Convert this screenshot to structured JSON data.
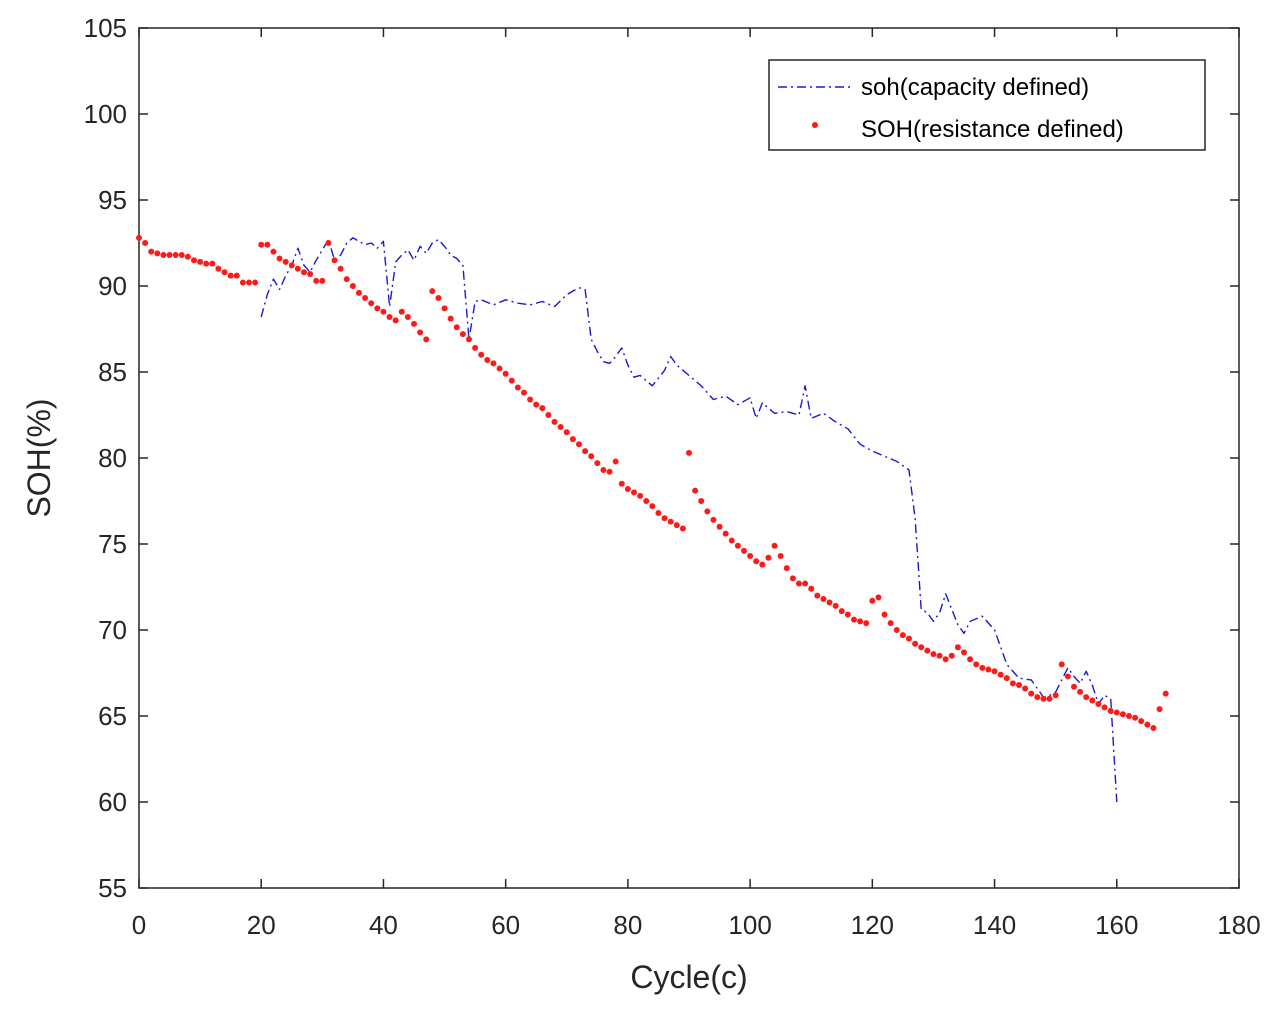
{
  "chart_data": {
    "type": "line",
    "title": "",
    "xlabel": "Cycle(c)",
    "ylabel": "SOH(%)",
    "xlim": [
      0,
      180
    ],
    "ylim": [
      55,
      105
    ],
    "xticks": [
      0,
      20,
      40,
      60,
      80,
      100,
      120,
      140,
      160,
      180
    ],
    "yticks": [
      55,
      60,
      65,
      70,
      75,
      80,
      85,
      90,
      95,
      100,
      105
    ],
    "grid": false,
    "legend_position": "top-right",
    "series": [
      {
        "name": "soh(capacity defined)",
        "style": "dash-dot line",
        "color": "#1a1acc",
        "x": [
          20,
          21,
          22,
          23,
          24,
          25,
          26,
          27,
          28,
          29,
          30,
          31,
          32,
          33,
          34,
          35,
          36,
          37,
          38,
          39,
          40,
          41,
          42,
          43,
          44,
          45,
          46,
          47,
          48,
          49,
          50,
          51,
          52,
          53,
          54,
          55,
          56,
          58,
          60,
          62,
          64,
          66,
          68,
          70,
          72,
          73,
          74,
          75,
          76,
          77,
          78,
          79,
          80,
          81,
          82,
          84,
          86,
          87,
          88,
          90,
          92,
          94,
          96,
          98,
          100,
          101,
          102,
          104,
          106,
          108,
          109,
          110,
          112,
          114,
          116,
          118,
          120,
          122,
          124,
          126,
          127,
          128,
          129,
          130,
          131,
          132,
          133,
          134,
          135,
          136,
          138,
          140,
          142,
          144,
          146,
          148,
          149,
          150,
          151,
          152,
          153,
          154,
          155,
          156,
          157,
          158,
          159,
          160
        ],
        "y": [
          88.2,
          89.5,
          90.4,
          89.8,
          90.6,
          91.2,
          92.2,
          91.2,
          90.8,
          91.5,
          92.1,
          92.7,
          91.5,
          91.8,
          92.5,
          92.8,
          92.6,
          92.4,
          92.5,
          92.2,
          92.6,
          88.8,
          91.4,
          91.8,
          92.1,
          91.5,
          92.3,
          91.9,
          92.5,
          92.7,
          92.3,
          91.8,
          91.6,
          91.2,
          86.9,
          89.1,
          89.2,
          88.9,
          89.2,
          89.0,
          88.9,
          89.1,
          88.8,
          89.5,
          89.9,
          89.8,
          86.9,
          86.2,
          85.6,
          85.5,
          85.9,
          86.4,
          85.4,
          84.7,
          84.8,
          84.2,
          85.1,
          85.9,
          85.4,
          84.8,
          84.2,
          83.4,
          83.6,
          83.1,
          83.5,
          82.3,
          83.2,
          82.6,
          82.7,
          82.5,
          84.2,
          82.3,
          82.6,
          82.1,
          81.7,
          80.8,
          80.4,
          80.1,
          79.8,
          79.3,
          76.5,
          71.2,
          71.0,
          70.5,
          71.0,
          72.1,
          71.2,
          70.3,
          69.8,
          70.5,
          70.8,
          70.0,
          68.0,
          67.2,
          67.1,
          66.1,
          66.2,
          66.4,
          67.1,
          67.8,
          67.3,
          66.9,
          67.6,
          66.8,
          65.7,
          66.2,
          66.0,
          60.0
        ]
      },
      {
        "name": "SOH(resistance defined)",
        "style": "dots",
        "color": "#ff1a1a",
        "x": [
          0,
          1,
          2,
          3,
          4,
          5,
          6,
          7,
          8,
          9,
          10,
          11,
          12,
          13,
          14,
          15,
          16,
          17,
          18,
          19,
          20,
          21,
          22,
          23,
          24,
          25,
          26,
          27,
          28,
          29,
          30,
          31,
          32,
          33,
          34,
          35,
          36,
          37,
          38,
          39,
          40,
          41,
          42,
          43,
          44,
          45,
          46,
          47,
          48,
          49,
          50,
          51,
          52,
          53,
          54,
          55,
          56,
          57,
          58,
          59,
          60,
          61,
          62,
          63,
          64,
          65,
          66,
          67,
          68,
          69,
          70,
          71,
          72,
          73,
          74,
          75,
          76,
          77,
          78,
          79,
          80,
          81,
          82,
          83,
          84,
          85,
          86,
          87,
          88,
          89,
          90,
          91,
          92,
          93,
          94,
          95,
          96,
          97,
          98,
          99,
          100,
          101,
          102,
          103,
          104,
          105,
          106,
          107,
          108,
          109,
          110,
          111,
          112,
          113,
          114,
          115,
          116,
          117,
          118,
          119,
          120,
          121,
          122,
          123,
          124,
          125,
          126,
          127,
          128,
          129,
          130,
          131,
          132,
          133,
          134,
          135,
          136,
          137,
          138,
          139,
          140,
          141,
          142,
          143,
          144,
          145,
          146,
          147,
          148,
          149,
          150,
          151,
          152,
          153,
          154,
          155,
          156,
          157,
          158,
          159,
          160,
          161,
          162,
          163,
          164,
          165,
          166,
          167,
          168
        ],
        "y": [
          92.8,
          92.5,
          92.0,
          91.9,
          91.8,
          91.8,
          91.8,
          91.8,
          91.7,
          91.5,
          91.4,
          91.3,
          91.3,
          91.0,
          90.8,
          90.6,
          90.6,
          90.2,
          90.2,
          90.2,
          92.4,
          92.4,
          92.0,
          91.6,
          91.4,
          91.2,
          91.0,
          90.8,
          90.7,
          90.3,
          90.3,
          92.5,
          91.5,
          91.0,
          90.4,
          90.0,
          89.6,
          89.3,
          89.0,
          88.7,
          88.5,
          88.2,
          88.0,
          88.5,
          88.2,
          87.8,
          87.3,
          86.9,
          89.7,
          89.3,
          88.7,
          88.1,
          87.6,
          87.2,
          86.9,
          86.4,
          86.0,
          85.7,
          85.5,
          85.2,
          84.9,
          84.5,
          84.1,
          83.8,
          83.4,
          83.1,
          82.9,
          82.5,
          82.1,
          81.8,
          81.5,
          81.1,
          80.8,
          80.4,
          80.1,
          79.7,
          79.3,
          79.2,
          79.8,
          78.5,
          78.2,
          78.0,
          77.8,
          77.5,
          77.2,
          76.8,
          76.5,
          76.3,
          76.1,
          75.9,
          80.3,
          78.1,
          77.5,
          76.9,
          76.4,
          76.0,
          75.6,
          75.2,
          74.9,
          74.6,
          74.3,
          74.0,
          73.8,
          74.2,
          74.9,
          74.3,
          73.6,
          73.0,
          72.7,
          72.7,
          72.4,
          72.0,
          71.8,
          71.6,
          71.4,
          71.1,
          70.9,
          70.6,
          70.5,
          70.4,
          71.7,
          71.9,
          70.9,
          70.4,
          70.0,
          69.7,
          69.5,
          69.2,
          69.0,
          68.8,
          68.6,
          68.5,
          68.3,
          68.5,
          69.0,
          68.7,
          68.3,
          68.0,
          67.8,
          67.7,
          67.6,
          67.4,
          67.2,
          66.9,
          66.8,
          66.6,
          66.3,
          66.1,
          66.0,
          66.0,
          66.2,
          68.0,
          67.3,
          66.7,
          66.4,
          66.1,
          65.9,
          65.7,
          65.5,
          65.3,
          65.2,
          65.1,
          65.0,
          64.9,
          64.7,
          64.5,
          64.3,
          65.4,
          66.3
        ]
      }
    ]
  }
}
